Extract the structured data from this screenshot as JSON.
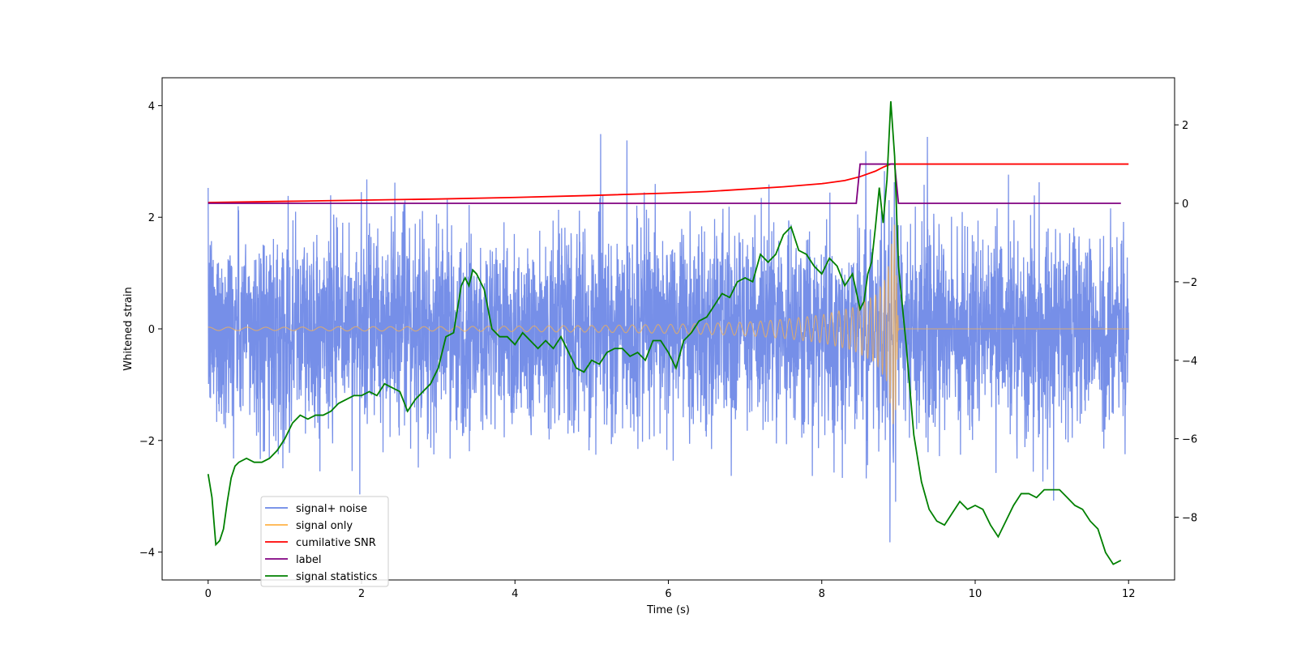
{
  "chart_data": {
    "type": "line",
    "title": "",
    "xlabel": "Time (s)",
    "ylabel": "Whitened strain",
    "y2label": "",
    "xlim": [
      -0.6,
      12.6
    ],
    "ylim": [
      -4.5,
      4.5
    ],
    "y2lim": [
      -9.6,
      3.2
    ],
    "xticks": [
      0,
      2,
      4,
      6,
      8,
      10,
      12
    ],
    "yticks": [
      -4,
      -2,
      0,
      2,
      4
    ],
    "y2ticks": [
      -8,
      -6,
      -4,
      -2,
      0,
      2
    ],
    "legend_position": "lower-left",
    "colors": {
      "noise": "#6a86e6",
      "signal": "#ffb347",
      "snr": "#ff0000",
      "label": "#800080",
      "stats": "#008000"
    },
    "series": [
      {
        "name": "signal+ noise",
        "axis": "left",
        "color_key": "noise",
        "description": "whitened noise plus injected chirp, roughly standard normal",
        "x_range": [
          0,
          12
        ],
        "typical_range": [
          -2.4,
          2.4
        ],
        "extremes": [
          -4.15,
          4.1
        ]
      },
      {
        "name": "signal only",
        "axis": "left",
        "color_key": "signal",
        "description": "chirp growing in amplitude until merger",
        "x": [
          0,
          1,
          2,
          3,
          4,
          5,
          6,
          7,
          7.5,
          8,
          8.4,
          8.7,
          8.85,
          8.95,
          9.0,
          12
        ],
        "envelope": [
          0.03,
          0.03,
          0.04,
          0.04,
          0.05,
          0.06,
          0.08,
          0.12,
          0.17,
          0.25,
          0.38,
          0.6,
          0.95,
          1.9,
          0.0,
          0.0
        ]
      },
      {
        "name": "cumilative SNR",
        "axis": "right",
        "color": "#ff0000",
        "x": [
          0,
          1,
          2,
          3,
          4,
          5,
          6,
          6.5,
          7,
          7.5,
          8,
          8.3,
          8.5,
          8.7,
          8.8,
          8.9,
          8.95,
          12
        ],
        "values": [
          0.02,
          0.05,
          0.08,
          0.11,
          0.15,
          0.2,
          0.26,
          0.3,
          0.36,
          0.42,
          0.5,
          0.58,
          0.68,
          0.82,
          0.92,
          1.0,
          1.0,
          1.0
        ]
      },
      {
        "name": "label",
        "axis": "right",
        "color": "#800080",
        "x": [
          0,
          8.45,
          8.5,
          8.95,
          9.0,
          11.9
        ],
        "values": [
          0,
          0,
          1,
          1,
          0,
          0
        ]
      },
      {
        "name": "signal statistics",
        "axis": "right",
        "color": "#008000",
        "x": [
          0,
          0.05,
          0.1,
          0.15,
          0.2,
          0.25,
          0.3,
          0.35,
          0.4,
          0.5,
          0.6,
          0.7,
          0.8,
          0.9,
          1.0,
          1.1,
          1.2,
          1.3,
          1.4,
          1.5,
          1.6,
          1.7,
          1.8,
          1.9,
          2.0,
          2.1,
          2.2,
          2.3,
          2.4,
          2.5,
          2.6,
          2.7,
          2.8,
          2.9,
          3.0,
          3.1,
          3.2,
          3.3,
          3.35,
          3.4,
          3.45,
          3.5,
          3.55,
          3.6,
          3.7,
          3.8,
          3.9,
          4.0,
          4.1,
          4.2,
          4.3,
          4.4,
          4.5,
          4.6,
          4.7,
          4.8,
          4.9,
          5.0,
          5.1,
          5.2,
          5.3,
          5.4,
          5.5,
          5.6,
          5.7,
          5.8,
          5.9,
          6.0,
          6.1,
          6.2,
          6.3,
          6.4,
          6.5,
          6.6,
          6.7,
          6.8,
          6.9,
          7.0,
          7.1,
          7.2,
          7.3,
          7.4,
          7.5,
          7.6,
          7.7,
          7.8,
          7.9,
          8.0,
          8.1,
          8.2,
          8.3,
          8.4,
          8.5,
          8.55,
          8.6,
          8.65,
          8.7,
          8.75,
          8.8,
          8.85,
          8.9,
          8.95,
          9.0,
          9.1,
          9.2,
          9.3,
          9.4,
          9.5,
          9.6,
          9.7,
          9.8,
          9.9,
          10.0,
          10.1,
          10.2,
          10.3,
          10.4,
          10.5,
          10.6,
          10.7,
          10.8,
          10.9,
          11.0,
          11.1,
          11.2,
          11.3,
          11.4,
          11.5,
          11.6,
          11.7,
          11.8,
          11.9
        ],
        "values": [
          -6.9,
          -7.5,
          -8.7,
          -8.6,
          -8.3,
          -7.6,
          -7.0,
          -6.7,
          -6.6,
          -6.5,
          -6.6,
          -6.6,
          -6.5,
          -6.3,
          -6.0,
          -5.6,
          -5.4,
          -5.5,
          -5.4,
          -5.4,
          -5.3,
          -5.1,
          -5.0,
          -4.9,
          -4.9,
          -4.8,
          -4.9,
          -4.6,
          -4.7,
          -4.8,
          -5.3,
          -5.0,
          -4.8,
          -4.6,
          -4.2,
          -3.4,
          -3.3,
          -2.1,
          -1.9,
          -2.1,
          -1.7,
          -1.8,
          -2.0,
          -2.2,
          -3.2,
          -3.4,
          -3.4,
          -3.6,
          -3.3,
          -3.5,
          -3.7,
          -3.5,
          -3.7,
          -3.4,
          -3.8,
          -4.2,
          -4.3,
          -4.0,
          -4.1,
          -3.8,
          -3.7,
          -3.7,
          -3.9,
          -3.8,
          -4.0,
          -3.5,
          -3.5,
          -3.8,
          -4.2,
          -3.5,
          -3.3,
          -3.0,
          -2.9,
          -2.6,
          -2.3,
          -2.4,
          -2.0,
          -1.9,
          -2.0,
          -1.3,
          -1.5,
          -1.3,
          -0.8,
          -0.6,
          -1.2,
          -1.3,
          -1.6,
          -1.8,
          -1.4,
          -1.6,
          -2.1,
          -1.8,
          -2.7,
          -2.5,
          -1.8,
          -1.5,
          -0.6,
          0.4,
          -0.5,
          0.6,
          2.6,
          1.2,
          -1.6,
          -3.6,
          -5.9,
          -7.1,
          -7.8,
          -8.1,
          -8.2,
          -7.9,
          -7.6,
          -7.8,
          -7.7,
          -7.8,
          -8.2,
          -8.5,
          -8.1,
          -7.7,
          -7.4,
          -7.4,
          -7.5,
          -7.3,
          -7.3,
          -7.3,
          -7.5,
          -7.7,
          -7.8,
          -8.1,
          -8.3,
          -8.9,
          -9.2,
          -9.1
        ]
      }
    ]
  }
}
